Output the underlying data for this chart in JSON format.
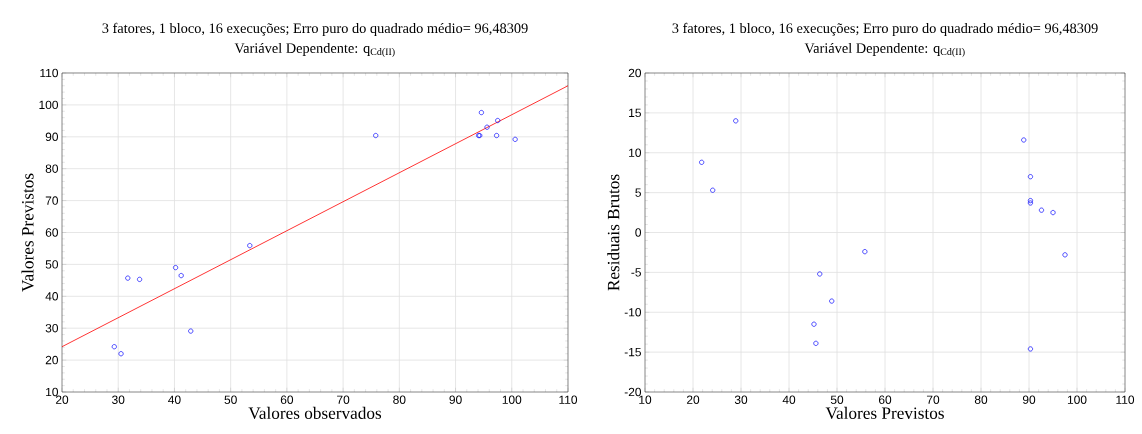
{
  "chart_data": [
    {
      "type": "scatter",
      "title": "3 fatores, 1 bloco, 16 execuções; Erro puro do quadrado médio= 96,48309",
      "subtitle": "Variável Dependente: q$_{Cd(II)}$",
      "xlabel": "Valores observados",
      "ylabel": "Valores Previstos",
      "xlim": [
        20,
        110
      ],
      "ylim": [
        10,
        110
      ],
      "xticks": [
        20,
        30,
        40,
        50,
        60,
        70,
        80,
        90,
        100,
        110
      ],
      "yticks": [
        10,
        20,
        30,
        40,
        50,
        60,
        70,
        80,
        90,
        100,
        110
      ],
      "grid": true,
      "series": [
        {
          "marker": "circle",
          "color": "#0000ff",
          "x": [
            29.3,
            30.5,
            31.7,
            33.8,
            40.2,
            41.2,
            42.9,
            53.4,
            75.8,
            94.1,
            94.3,
            94.6,
            95.6,
            97.3,
            97.5,
            100.6
          ],
          "values": [
            24.2,
            22,
            45.7,
            45.3,
            49,
            46.5,
            29.1,
            55.9,
            90.4,
            90.4,
            90.4,
            97.6,
            93,
            90.4,
            95.1,
            89.2
          ]
        },
        {
          "type": "line",
          "color": "#ff0000",
          "x": [
            20,
            110
          ],
          "values": [
            24.2,
            106
          ]
        }
      ]
    },
    {
      "type": "scatter",
      "title": "3 fatores, 1 bloco, 16 execuções; Erro puro do quadrado médio= 96,48309",
      "subtitle": "Variável Dependente: q$_{Cd(II)}$",
      "xlabel": "Valores Previstos",
      "ylabel": "Residuais Brutos",
      "xlim": [
        10,
        110
      ],
      "ylim": [
        -20,
        20
      ],
      "xticks": [
        10,
        20,
        30,
        40,
        50,
        60,
        70,
        80,
        90,
        100,
        110
      ],
      "yticks": [
        -20,
        -15,
        -10,
        -5,
        0,
        5,
        10,
        15,
        20
      ],
      "grid": true,
      "series": [
        {
          "marker": "circle",
          "color": "#0000ff",
          "x": [
            21.8,
            24.1,
            28.9,
            45.2,
            45.6,
            46.4,
            48.9,
            55.8,
            88.9,
            90.3,
            90.3,
            90.3,
            92.6,
            95.0,
            97.5,
            90.3
          ],
          "values": [
            8.8,
            5.3,
            14,
            -11.5,
            -13.9,
            -5.2,
            -8.6,
            -2.4,
            11.6,
            7,
            4,
            3.7,
            2.8,
            2.5,
            -2.8,
            -14.6
          ]
        }
      ]
    }
  ]
}
